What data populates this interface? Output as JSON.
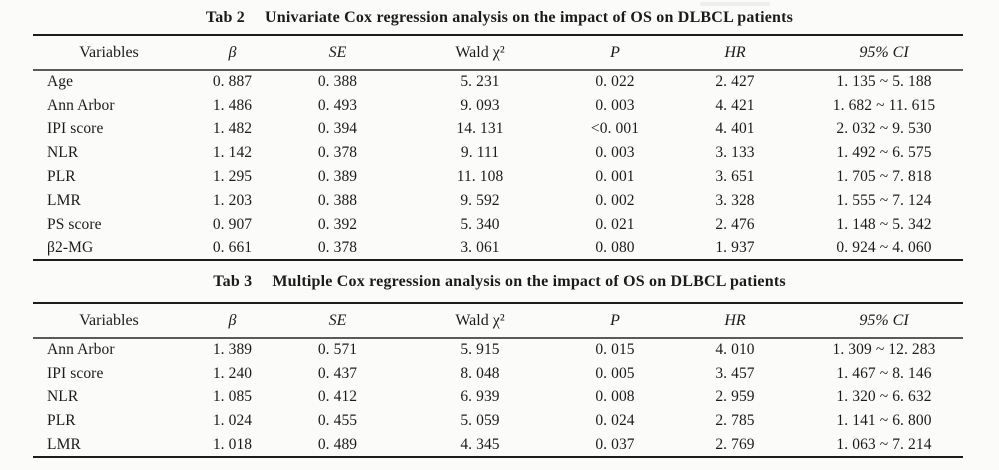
{
  "page": {
    "background_color": "#fbfbf9",
    "text_color": "#1b1b1b"
  },
  "tables": [
    {
      "title_tag": "Tab 2",
      "title_text": "Univariate Cox regression analysis on the impact of OS on DLBCL patients",
      "columns": [
        "Variables",
        "β",
        "SE",
        "Wald χ²",
        "P",
        "HR",
        "95% CI"
      ],
      "rows": [
        [
          "Age",
          "0. 887",
          "0. 388",
          "5. 231",
          "0. 022",
          "2. 427",
          "1. 135 ~ 5. 188"
        ],
        [
          "Ann Arbor",
          "1. 486",
          "0. 493",
          "9. 093",
          "0. 003",
          "4. 421",
          "1. 682 ~ 11. 615"
        ],
        [
          "IPI score",
          "1. 482",
          "0. 394",
          "14. 131",
          "<0. 001",
          "4. 401",
          "2. 032 ~ 9. 530"
        ],
        [
          "NLR",
          "1. 142",
          "0. 378",
          "9. 111",
          "0. 003",
          "3. 133",
          "1. 492 ~ 6. 575"
        ],
        [
          "PLR",
          "1. 295",
          "0. 389",
          "11. 108",
          "0. 001",
          "3. 651",
          "1. 705 ~ 7. 818"
        ],
        [
          "LMR",
          "1. 203",
          "0. 388",
          "9. 592",
          "0. 002",
          "3. 328",
          "1. 555 ~ 7. 124"
        ],
        [
          "PS score",
          "0. 907",
          "0. 392",
          "5. 340",
          "0. 021",
          "2. 476",
          "1. 148 ~ 5. 342"
        ],
        [
          "β2-MG",
          "0. 661",
          "0. 378",
          "3. 061",
          "0. 080",
          "1. 937",
          "0. 924 ~ 4. 060"
        ]
      ]
    },
    {
      "title_tag": "Tab 3",
      "title_text": "Multiple Cox regression analysis on the impact of OS on DLBCL patients",
      "columns": [
        "Variables",
        "β",
        "SE",
        "Wald χ²",
        "P",
        "HR",
        "95% CI"
      ],
      "rows": [
        [
          "Ann Arbor",
          "1. 389",
          "0. 571",
          "5. 915",
          "0. 015",
          "4. 010",
          "1. 309 ~ 12. 283"
        ],
        [
          "IPI score",
          "1. 240",
          "0. 437",
          "8. 048",
          "0. 005",
          "3. 457",
          "1. 467 ~ 8. 146"
        ],
        [
          "NLR",
          "1. 085",
          "0. 412",
          "6. 939",
          "0. 008",
          "2. 959",
          "1. 320 ~ 6. 632"
        ],
        [
          "PLR",
          "1. 024",
          "0. 455",
          "5. 059",
          "0. 024",
          "2. 785",
          "1. 141 ~ 6. 800"
        ],
        [
          "LMR",
          "1. 018",
          "0. 489",
          "4. 345",
          "0. 037",
          "2. 769",
          "1. 063 ~ 7. 214"
        ]
      ]
    }
  ]
}
